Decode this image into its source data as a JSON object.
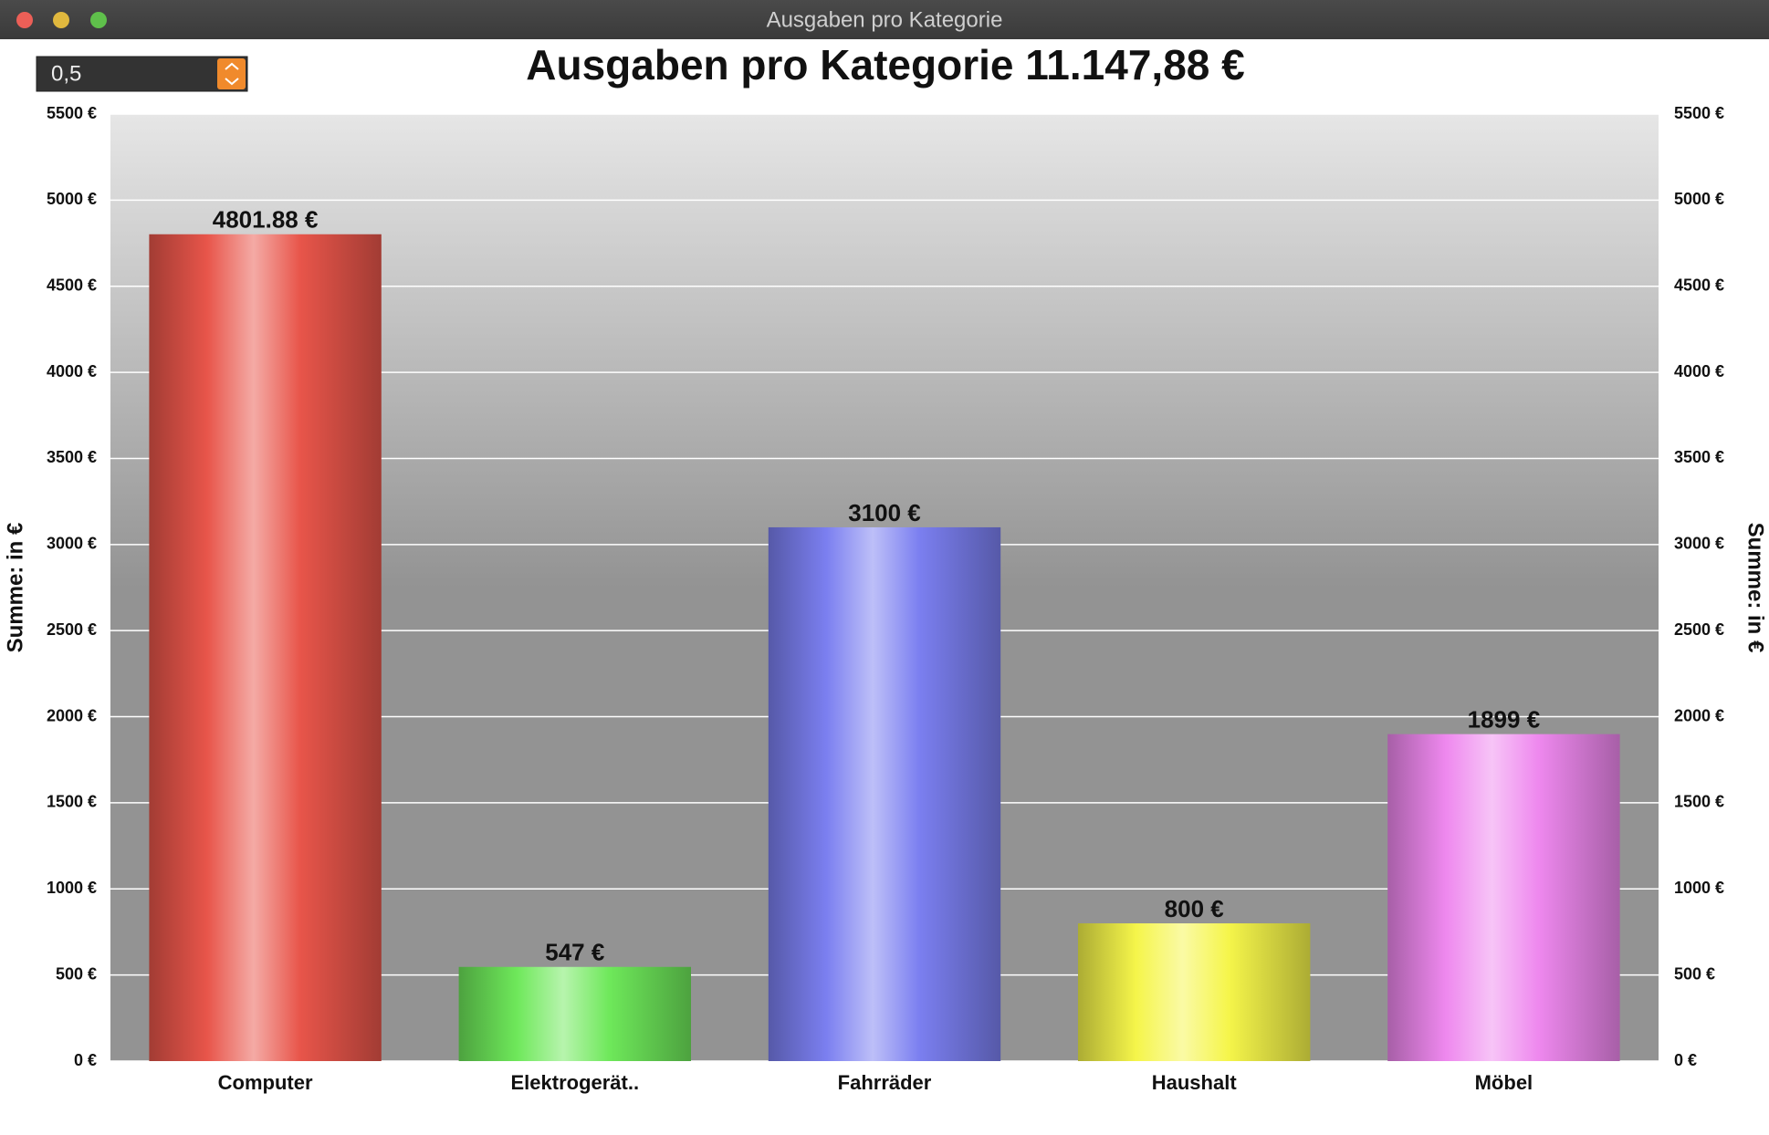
{
  "window_title": "Ausgaben pro Kategorie",
  "spinner_value": "0,5",
  "chart_data": {
    "type": "bar",
    "title": "Ausgaben pro Kategorie 11.147,88 €",
    "ylabel": "Summe:  in €",
    "categories": [
      "Computer",
      "Elektrogerät..",
      "Fahrräder",
      "Haushalt",
      "Möbel"
    ],
    "values": [
      4801.88,
      547,
      3100,
      800,
      1899
    ],
    "value_labels": [
      "4801.88 €",
      "547 €",
      "3100 €",
      "800 €",
      "1899 €"
    ],
    "colors": [
      "#e8554a",
      "#6ee85a",
      "#7b7ff0",
      "#f5f54a",
      "#ee88ee"
    ],
    "ylim": [
      0,
      5500
    ],
    "yticks": [
      {
        "value": 0,
        "label": "0 €"
      },
      {
        "value": 500,
        "label": "500 €"
      },
      {
        "value": 1000,
        "label": "1000 €"
      },
      {
        "value": 1500,
        "label": "1500 €"
      },
      {
        "value": 2000,
        "label": "2000 €"
      },
      {
        "value": 2500,
        "label": "2500 €"
      },
      {
        "value": 3000,
        "label": "3000 €"
      },
      {
        "value": 3500,
        "label": "3500 €"
      },
      {
        "value": 4000,
        "label": "4000 €"
      },
      {
        "value": 4500,
        "label": "4500 €"
      },
      {
        "value": 5000,
        "label": "5000 €"
      },
      {
        "value": 5500,
        "label": "5500 €"
      }
    ],
    "grid": true,
    "mirror_axis": true
  }
}
